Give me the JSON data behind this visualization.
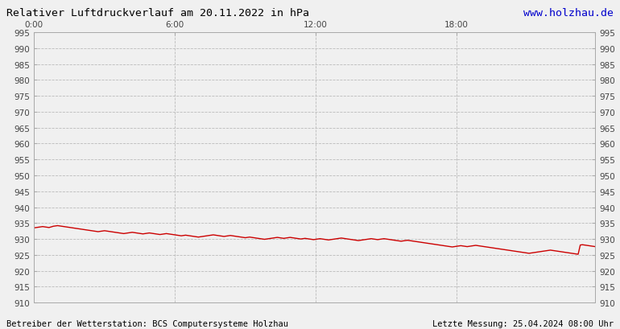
{
  "title": "Relativer Luftdruckverlauf am 20.11.2022 in hPa",
  "url_text": "www.holzhau.de",
  "footer_left": "Betreiber der Wetterstation: BCS Computersysteme Holzhau",
  "footer_right": "Letzte Messung: 25.04.2024 08:00 Uhr",
  "xlim": [
    0,
    287
  ],
  "ylim": [
    910,
    995
  ],
  "yticks": [
    910,
    915,
    920,
    925,
    930,
    935,
    940,
    945,
    950,
    955,
    960,
    965,
    970,
    975,
    980,
    985,
    990,
    995
  ],
  "xtick_positions": [
    0,
    72,
    144,
    216,
    287
  ],
  "xtick_labels": [
    "0:00",
    "6:00",
    "12:00",
    "18:00",
    ""
  ],
  "line_color": "#cc0000",
  "bg_color": "#f0f0f0",
  "grid_color": "#bbbbbb",
  "title_color": "#000000",
  "url_color": "#0000cc",
  "pressure_data": [
    933.5,
    933.6,
    933.7,
    933.8,
    933.9,
    933.8,
    933.7,
    933.6,
    933.8,
    934.0,
    934.1,
    934.2,
    934.1,
    934.0,
    933.9,
    933.8,
    933.7,
    933.6,
    933.5,
    933.4,
    933.3,
    933.2,
    933.1,
    933.0,
    932.9,
    932.8,
    932.7,
    932.6,
    932.5,
    932.4,
    932.3,
    932.4,
    932.5,
    932.6,
    932.5,
    932.4,
    932.3,
    932.2,
    932.1,
    932.0,
    931.9,
    931.8,
    931.7,
    931.8,
    931.9,
    932.0,
    932.1,
    932.0,
    931.9,
    931.8,
    931.7,
    931.6,
    931.7,
    931.8,
    931.9,
    931.8,
    931.7,
    931.6,
    931.5,
    931.4,
    931.5,
    931.6,
    931.7,
    931.6,
    931.5,
    931.4,
    931.3,
    931.2,
    931.1,
    931.0,
    931.1,
    931.2,
    931.1,
    931.0,
    930.9,
    930.8,
    930.7,
    930.6,
    930.7,
    930.8,
    930.9,
    931.0,
    931.1,
    931.2,
    931.3,
    931.2,
    931.1,
    931.0,
    930.9,
    930.8,
    930.9,
    931.0,
    931.1,
    931.0,
    930.9,
    930.8,
    930.7,
    930.6,
    930.5,
    930.4,
    930.5,
    930.6,
    930.5,
    930.4,
    930.3,
    930.2,
    930.1,
    930.0,
    929.9,
    930.0,
    930.1,
    930.2,
    930.3,
    930.4,
    930.5,
    930.4,
    930.3,
    930.2,
    930.3,
    930.4,
    930.5,
    930.4,
    930.3,
    930.2,
    930.1,
    930.0,
    930.1,
    930.2,
    930.1,
    930.0,
    929.9,
    929.8,
    929.9,
    930.0,
    930.1,
    930.0,
    929.9,
    929.8,
    929.7,
    929.8,
    929.9,
    930.0,
    930.1,
    930.2,
    930.3,
    930.2,
    930.1,
    930.0,
    929.9,
    929.8,
    929.7,
    929.6,
    929.5,
    929.6,
    929.7,
    929.8,
    929.9,
    930.0,
    930.1,
    930.0,
    929.9,
    929.8,
    929.9,
    930.0,
    930.1,
    930.0,
    929.9,
    929.8,
    929.7,
    929.6,
    929.5,
    929.4,
    929.3,
    929.4,
    929.5,
    929.6,
    929.5,
    929.4,
    929.3,
    929.2,
    929.1,
    929.0,
    928.9,
    928.8,
    928.7,
    928.6,
    928.5,
    928.4,
    928.3,
    928.2,
    928.1,
    928.0,
    927.9,
    927.8,
    927.7,
    927.6,
    927.5,
    927.6,
    927.7,
    927.8,
    927.9,
    927.8,
    927.7,
    927.6,
    927.7,
    927.8,
    927.9,
    928.0,
    927.9,
    927.8,
    927.7,
    927.6,
    927.5,
    927.4,
    927.3,
    927.2,
    927.1,
    927.0,
    926.9,
    926.8,
    926.7,
    926.6,
    926.5,
    926.4,
    926.3,
    926.2,
    926.1,
    926.0,
    925.9,
    925.8,
    925.7,
    925.6,
    925.5,
    925.6,
    925.7,
    925.8,
    925.9,
    926.0,
    926.1,
    926.2,
    926.3,
    926.4,
    926.5,
    926.4,
    926.3,
    926.2,
    926.1,
    926.0,
    925.9,
    925.8,
    925.7,
    925.6,
    925.5,
    925.4,
    925.3,
    925.2,
    928.1,
    928.2,
    928.1,
    928.0,
    927.9,
    927.8,
    927.7,
    927.6
  ]
}
